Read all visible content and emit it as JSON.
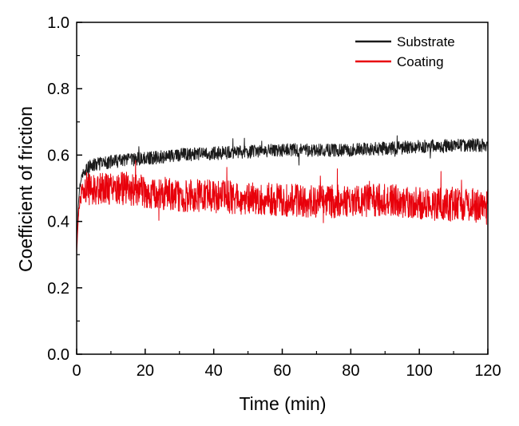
{
  "chart_data": {
    "type": "line",
    "title": "",
    "xlabel": "Time (min)",
    "ylabel": "Coefficient of friction",
    "xlim": [
      0,
      120
    ],
    "ylim": [
      0.0,
      1.0
    ],
    "x_ticks": [
      "0",
      "20",
      "40",
      "60",
      "80",
      "100",
      "120"
    ],
    "y_ticks": [
      "0.0",
      "0.2",
      "0.4",
      "0.6",
      "0.8",
      "1.0"
    ],
    "grid": false,
    "legend_position": "top-right",
    "series": [
      {
        "name": "Substrate",
        "color": "#1a1a1a",
        "x": [
          0,
          0.5,
          1,
          2,
          3,
          5,
          10,
          15,
          20,
          30,
          40,
          50,
          60,
          70,
          80,
          90,
          100,
          110,
          120
        ],
        "values": [
          0.32,
          0.45,
          0.52,
          0.55,
          0.56,
          0.57,
          0.58,
          0.585,
          0.59,
          0.6,
          0.605,
          0.61,
          0.615,
          0.615,
          0.615,
          0.62,
          0.625,
          0.63,
          0.63
        ],
        "noise_amplitude": 0.02
      },
      {
        "name": "Coating",
        "color": "#e8000b",
        "x": [
          0,
          0.5,
          1,
          2,
          3,
          5,
          10,
          15,
          20,
          30,
          40,
          50,
          60,
          70,
          80,
          90,
          100,
          110,
          120
        ],
        "values": [
          0.3,
          0.42,
          0.47,
          0.49,
          0.5,
          0.5,
          0.5,
          0.5,
          0.49,
          0.48,
          0.475,
          0.47,
          0.465,
          0.46,
          0.46,
          0.465,
          0.455,
          0.45,
          0.45
        ],
        "noise_amplitude": 0.05
      }
    ]
  }
}
